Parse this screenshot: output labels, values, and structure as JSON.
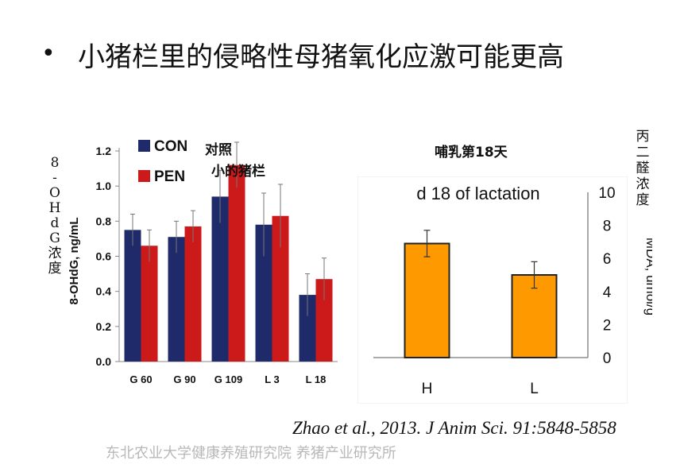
{
  "slide": {
    "bullet_symbol": "•",
    "heading": "小猪栏里的侵略性母猪氧化应激可能更高",
    "citation": "Zhao et al., 2013. J Anim Sci. 91:5848-5858",
    "footer": "东北农业大学健康养殖研究院 养猪产业研究所"
  },
  "annotations": {
    "control_note": "对照",
    "small_pen_note": "小的猪栏",
    "chart2_caption": "哺乳第18天"
  },
  "chart_data": [
    {
      "type": "bar",
      "categories": [
        "G 60",
        "G 90",
        "G 109",
        "L 3",
        "L 18"
      ],
      "series": [
        {
          "name": "CON",
          "color": "#1f2a6b",
          "values": [
            0.75,
            0.71,
            0.94,
            0.78,
            0.38
          ],
          "errors": [
            0.09,
            0.09,
            0.15,
            0.18,
            0.12
          ]
        },
        {
          "name": "PEN",
          "color": "#cc1a1a",
          "values": [
            0.66,
            0.77,
            1.12,
            0.83,
            0.47
          ],
          "errors": [
            0.09,
            0.09,
            0.13,
            0.18,
            0.12
          ]
        }
      ],
      "ylabel": "8-OHdG, ng/mL",
      "ylabel_cn": [
        "8",
        "-",
        "O",
        "H",
        "d",
        "G",
        "浓",
        "度"
      ],
      "ylim": [
        0,
        1.2
      ],
      "yticks": [
        "0.0",
        "0.2",
        "0.4",
        "0.6",
        "0.8",
        "1.0",
        "1.2"
      ],
      "legend": "top-left"
    },
    {
      "type": "bar",
      "title": "d 18 of lactation",
      "categories": [
        "H",
        "L"
      ],
      "series": [
        {
          "color": "#ff9900",
          "values": [
            6.9,
            5.0
          ],
          "errors": [
            0.8,
            0.8
          ]
        }
      ],
      "ylabel": "MDA, umol/g",
      "ylabel_cn": [
        "丙",
        "二",
        "醛",
        "浓",
        "度"
      ],
      "ylim": [
        0,
        10
      ],
      "yticks": [
        "0",
        "2",
        "4",
        "6",
        "8",
        "10"
      ],
      "yaxis_side": "right"
    }
  ]
}
